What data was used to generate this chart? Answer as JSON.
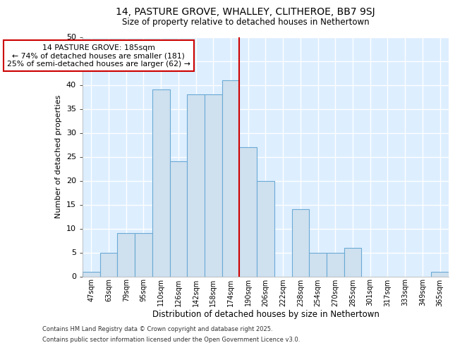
{
  "title1": "14, PASTURE GROVE, WHALLEY, CLITHEROE, BB7 9SJ",
  "title2": "Size of property relative to detached houses in Nethertown",
  "xlabel": "Distribution of detached houses by size in Nethertown",
  "ylabel": "Number of detached properties",
  "categories": [
    "47sqm",
    "63sqm",
    "79sqm",
    "95sqm",
    "110sqm",
    "126sqm",
    "142sqm",
    "158sqm",
    "174sqm",
    "190sqm",
    "206sqm",
    "222sqm",
    "238sqm",
    "254sqm",
    "270sqm",
    "285sqm",
    "301sqm",
    "317sqm",
    "333sqm",
    "349sqm",
    "365sqm"
  ],
  "values": [
    1,
    5,
    9,
    9,
    39,
    24,
    38,
    38,
    41,
    27,
    20,
    0,
    14,
    5,
    5,
    6,
    0,
    0,
    0,
    0,
    1
  ],
  "bar_color": "#cfe0ef",
  "bar_edge_color": "#6aaad4",
  "red_line_index": 8,
  "red_line_color": "#cc0000",
  "annotation_text": "14 PASTURE GROVE: 185sqm\n← 74% of detached houses are smaller (181)\n25% of semi-detached houses are larger (62) →",
  "annotation_box_color": "#ffffff",
  "annotation_box_edge_color": "#cc0000",
  "ylim": [
    0,
    50
  ],
  "yticks": [
    0,
    5,
    10,
    15,
    20,
    25,
    30,
    35,
    40,
    45,
    50
  ],
  "fig_bg": "#ffffff",
  "plot_bg": "#ddeeff",
  "grid_color": "#ffffff",
  "footer_line1": "Contains HM Land Registry data © Crown copyright and database right 2025.",
  "footer_line2": "Contains public sector information licensed under the Open Government Licence v3.0."
}
